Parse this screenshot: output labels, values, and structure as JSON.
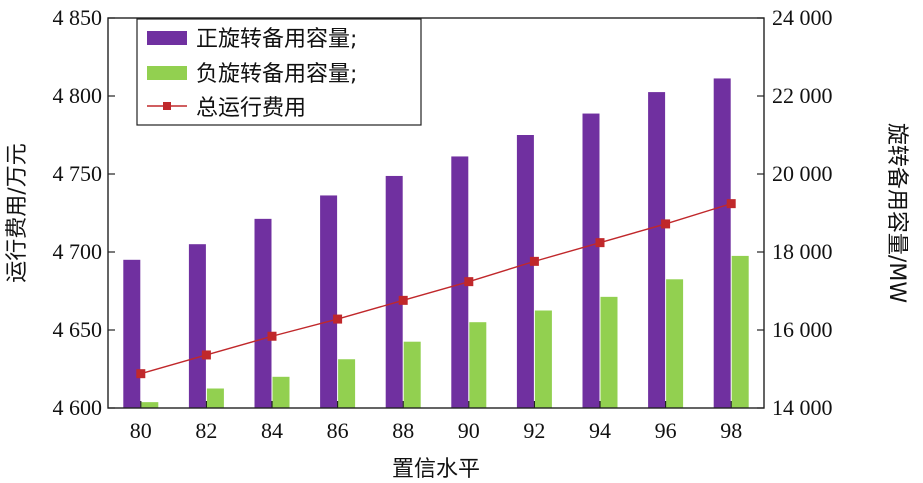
{
  "chart_data": {
    "type": "bar",
    "categories": [
      "80",
      "82",
      "84",
      "86",
      "88",
      "90",
      "92",
      "94",
      "96",
      "98"
    ],
    "xlabel": "置信水平",
    "ylabel_left": "运行费用/万元",
    "ylabel_right": "旋转备用容量/MW",
    "ylim_left": [
      4600,
      4850
    ],
    "ylim_right": [
      14000,
      24000
    ],
    "yticks_left": [
      "4 600",
      "4 650",
      "4 700",
      "4 750",
      "4 800",
      "4 850"
    ],
    "yticks_right": [
      "14 000",
      "16 000",
      "18 000",
      "20 000",
      "22 000",
      "24 000"
    ],
    "legend_position": "top-left",
    "grid": false,
    "series": [
      {
        "name": "正旋转备用容量;",
        "type": "bar",
        "axis": "right",
        "color": "#7030a0",
        "values": [
          17800,
          18200,
          18850,
          19450,
          19950,
          20450,
          21000,
          21550,
          22100,
          22450
        ]
      },
      {
        "name": "负旋转备用容量;",
        "type": "bar",
        "axis": "right",
        "color": "#92d050",
        "values": [
          14150,
          14500,
          14800,
          15250,
          15700,
          16200,
          16500,
          16850,
          17300,
          17900
        ]
      },
      {
        "name": "总运行费用",
        "type": "line",
        "axis": "left",
        "color": "#c0282b",
        "marker": "square",
        "values": [
          4622,
          4634,
          4646,
          4657,
          4669,
          4681,
          4694,
          4706,
          4718,
          4731
        ]
      }
    ]
  }
}
